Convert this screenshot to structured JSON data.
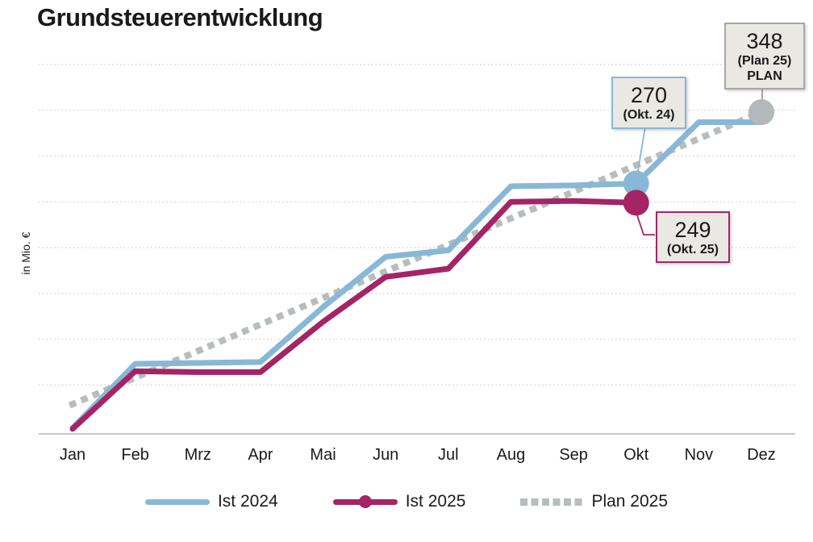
{
  "title": "Grundsteuerentwicklung",
  "ylabel": "in Mio. €",
  "chart_data": {
    "type": "line",
    "categories": [
      "Jan",
      "Feb",
      "Mrz",
      "Apr",
      "Mai",
      "Jun",
      "Jul",
      "Aug",
      "Sep",
      "Okt",
      "Nov",
      "Dez"
    ],
    "series": [
      {
        "name": "Ist 2024",
        "style": "solid",
        "color_key": "ist2024",
        "values": [
          3,
          73,
          74,
          75,
          135,
          190,
          197,
          267,
          268,
          270,
          337,
          337
        ]
      },
      {
        "name": "Ist 2025",
        "style": "solid",
        "color_key": "ist2025",
        "values": [
          2,
          65,
          64,
          64,
          119,
          168,
          177,
          250,
          251,
          249
        ]
      },
      {
        "name": "Plan 2025",
        "style": "dotted",
        "color_key": "plan",
        "values": [
          29,
          58,
          87,
          116,
          145,
          174,
          203,
          232,
          261,
          290,
          319,
          348
        ]
      }
    ],
    "ylim": [
      0,
      420
    ],
    "grid_values": [
      50,
      100,
      150,
      200,
      250,
      300,
      350,
      400
    ],
    "grid_on": true,
    "legend_position": "bottom",
    "markers": [
      {
        "month": "Okt",
        "series": "Ist 2024",
        "value": 270,
        "color_key": "ist2024"
      },
      {
        "month": "Okt",
        "series": "Ist 2025",
        "value": 249,
        "color_key": "ist2025"
      },
      {
        "month": "Dez",
        "series": "Plan 2025",
        "value": 348,
        "color_key": "plan_marker"
      }
    ]
  },
  "annotations": {
    "okt24": {
      "value": "270",
      "label": "(Okt. 24)"
    },
    "okt25": {
      "value": "249",
      "label": "(Okt. 25)"
    },
    "plan": {
      "value": "348",
      "label": "(Plan 25)",
      "sublabel": "PLAN"
    }
  },
  "legend": {
    "items": [
      {
        "label": "Ist 2024"
      },
      {
        "label": "Ist 2025"
      },
      {
        "label": "Plan 2025"
      }
    ]
  },
  "colors": {
    "ist2024": "#87b8d6",
    "ist2025": "#a42465",
    "plan": "#b7bdb9",
    "plan_marker": "#b3b8ba",
    "annotation_fill": "#e9e8e2",
    "annotation_border_gray": "#a6a6a6",
    "grid": "#d0d0d0",
    "axis": "#c8c8c8",
    "text": "#1a1a1a"
  }
}
